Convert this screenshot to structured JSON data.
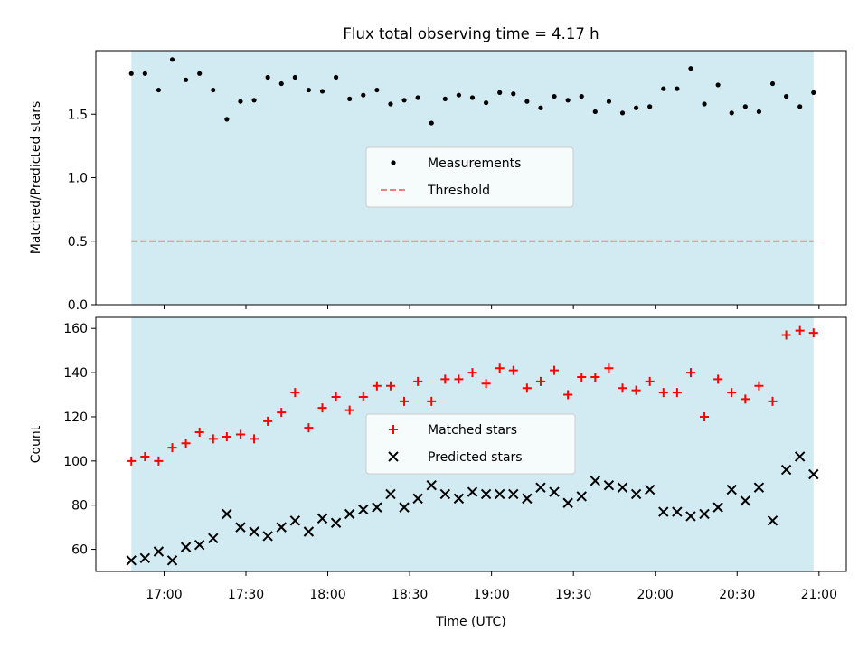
{
  "figure": {
    "title": "Flux total observing time = 4.17 h",
    "xlabel": "Time (UTC)",
    "x_tick_labels": [
      "17:00",
      "17:30",
      "18:00",
      "18:30",
      "19:00",
      "19:30",
      "20:00",
      "20:30",
      "21:00"
    ],
    "shaded_span": [
      "16:48",
      "20:58"
    ],
    "shade_color": "#add8e6"
  },
  "chart_data": [
    {
      "type": "scatter",
      "ylabel": "Matched/Predicted stars",
      "ylim": [
        0,
        2.0
      ],
      "y_ticks": [
        0.0,
        0.5,
        1.0,
        1.5
      ],
      "y_tick_labels": [
        "0.0",
        "0.5",
        "1.0",
        "1.5"
      ],
      "legend_position": "center",
      "series": [
        {
          "name": "Measurements",
          "kind": "points",
          "marker": "dot",
          "color": "#000000",
          "x": [
            "16:48",
            "16:53",
            "16:58",
            "17:03",
            "17:08",
            "17:13",
            "17:18",
            "17:23",
            "17:28",
            "17:33",
            "17:38",
            "17:43",
            "17:48",
            "17:53",
            "17:58",
            "18:03",
            "18:08",
            "18:13",
            "18:18",
            "18:23",
            "18:28",
            "18:33",
            "18:38",
            "18:43",
            "18:48",
            "18:53",
            "18:58",
            "19:03",
            "19:08",
            "19:13",
            "19:18",
            "19:23",
            "19:28",
            "19:33",
            "19:38",
            "19:43",
            "19:48",
            "19:53",
            "19:58",
            "20:03",
            "20:08",
            "20:13",
            "20:18",
            "20:23",
            "20:28",
            "20:33",
            "20:38",
            "20:43",
            "20:48",
            "20:53",
            "20:58"
          ],
          "y": [
            1.82,
            1.82,
            1.69,
            1.93,
            1.77,
            1.82,
            1.69,
            1.46,
            1.6,
            1.61,
            1.79,
            1.74,
            1.79,
            1.69,
            1.68,
            1.79,
            1.62,
            1.65,
            1.69,
            1.58,
            1.61,
            1.63,
            1.43,
            1.62,
            1.65,
            1.63,
            1.59,
            1.67,
            1.66,
            1.6,
            1.55,
            1.64,
            1.61,
            1.64,
            1.52,
            1.6,
            1.51,
            1.55,
            1.56,
            1.7,
            1.7,
            1.86,
            1.58,
            1.73,
            1.51,
            1.56,
            1.52,
            1.74,
            1.64,
            1.56,
            1.67
          ]
        },
        {
          "name": "Threshold",
          "kind": "hline",
          "style": "dashed",
          "color": "#f08080",
          "y_value": 0.5,
          "x_range": [
            "16:48",
            "20:58"
          ]
        }
      ]
    },
    {
      "type": "scatter",
      "ylabel": "Count",
      "ylim": [
        50,
        165
      ],
      "y_ticks": [
        60,
        80,
        100,
        120,
        140,
        160
      ],
      "y_tick_labels": [
        "60",
        "80",
        "100",
        "120",
        "140",
        "160"
      ],
      "legend_position": "center",
      "series": [
        {
          "name": "Matched stars",
          "kind": "points",
          "marker": "plus",
          "color": "#ff0000",
          "x": [
            "16:48",
            "16:53",
            "16:58",
            "17:03",
            "17:08",
            "17:13",
            "17:18",
            "17:23",
            "17:28",
            "17:33",
            "17:38",
            "17:43",
            "17:48",
            "17:53",
            "17:58",
            "18:03",
            "18:08",
            "18:13",
            "18:18",
            "18:23",
            "18:28",
            "18:33",
            "18:38",
            "18:43",
            "18:48",
            "18:53",
            "18:58",
            "19:03",
            "19:08",
            "19:13",
            "19:18",
            "19:23",
            "19:28",
            "19:33",
            "19:38",
            "19:43",
            "19:48",
            "19:53",
            "19:58",
            "20:03",
            "20:08",
            "20:13",
            "20:18",
            "20:23",
            "20:28",
            "20:33",
            "20:38",
            "20:43",
            "20:48",
            "20:53",
            "20:58"
          ],
          "y": [
            100,
            102,
            100,
            106,
            108,
            113,
            110,
            111,
            112,
            110,
            118,
            122,
            131,
            115,
            124,
            129,
            123,
            129,
            134,
            134,
            127,
            136,
            127,
            137,
            137,
            140,
            135,
            142,
            141,
            133,
            136,
            141,
            130,
            138,
            138,
            142,
            133,
            132,
            136,
            131,
            131,
            140,
            120,
            137,
            131,
            128,
            134,
            127,
            157,
            159,
            158
          ]
        },
        {
          "name": "Predicted stars",
          "kind": "points",
          "marker": "x",
          "color": "#000000",
          "x": [
            "16:48",
            "16:53",
            "16:58",
            "17:03",
            "17:08",
            "17:13",
            "17:18",
            "17:23",
            "17:28",
            "17:33",
            "17:38",
            "17:43",
            "17:48",
            "17:53",
            "17:58",
            "18:03",
            "18:08",
            "18:13",
            "18:18",
            "18:23",
            "18:28",
            "18:33",
            "18:38",
            "18:43",
            "18:48",
            "18:53",
            "18:58",
            "19:03",
            "19:08",
            "19:13",
            "19:18",
            "19:23",
            "19:28",
            "19:33",
            "19:38",
            "19:43",
            "19:48",
            "19:53",
            "19:58",
            "20:03",
            "20:08",
            "20:13",
            "20:18",
            "20:23",
            "20:28",
            "20:33",
            "20:38",
            "20:43",
            "20:48",
            "20:53",
            "20:58"
          ],
          "y": [
            55,
            56,
            59,
            55,
            61,
            62,
            65,
            76,
            70,
            68,
            66,
            70,
            73,
            68,
            74,
            72,
            76,
            78,
            79,
            85,
            79,
            83,
            89,
            85,
            83,
            86,
            85,
            85,
            85,
            83,
            88,
            86,
            81,
            84,
            91,
            89,
            88,
            85,
            87,
            77,
            77,
            75,
            76,
            79,
            87,
            82,
            88,
            73,
            96,
            102,
            94
          ]
        }
      ]
    }
  ]
}
